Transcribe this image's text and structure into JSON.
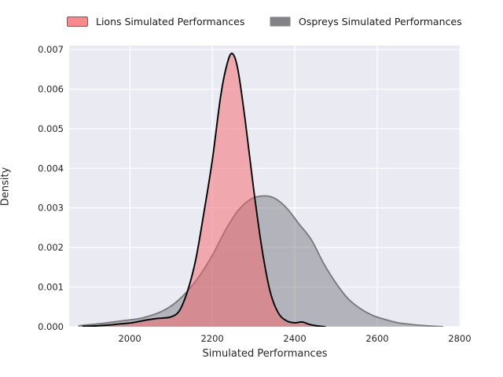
{
  "figure": {
    "background": "#ffffff",
    "plot_background": "#eaeaf2",
    "grid_color": "#ffffff",
    "text_color": "#262626"
  },
  "legend": {
    "items": [
      {
        "label": "Lions Simulated Performances",
        "swatch_fill": "#f8898c",
        "swatch_edge": "#a04a4e"
      },
      {
        "label": "Ospreys Simulated Performances",
        "swatch_fill": "#838387",
        "swatch_edge": "#bcbcc0"
      }
    ]
  },
  "chart_data": {
    "type": "area",
    "title": "",
    "xlabel": "Simulated Performances",
    "ylabel": "Density",
    "xlim": [
      1853,
      2802
    ],
    "ylim": [
      0,
      0.0071
    ],
    "xticks": [
      2000,
      2200,
      2400,
      2600,
      2800
    ],
    "yticks": [
      0,
      0.001,
      0.002,
      0.003,
      0.004,
      0.005,
      0.006,
      0.007
    ],
    "ytick_labels": [
      "0.000",
      "0.001",
      "0.002",
      "0.003",
      "0.004",
      "0.005",
      "0.006",
      "0.007"
    ],
    "grid": true,
    "legend_position": "above plot, horizontal, two entries",
    "series": [
      {
        "name": "Ospreys Simulated Performances",
        "line_color": "#7b7b7b",
        "fill_color": "rgba(110,110,116,0.44)",
        "x": [
          1875,
          1900,
          1930,
          1960,
          1990,
          2020,
          2050,
          2080,
          2110,
          2140,
          2170,
          2200,
          2230,
          2260,
          2290,
          2320,
          2350,
          2380,
          2410,
          2440,
          2470,
          2500,
          2530,
          2560,
          2590,
          2620,
          2650,
          2680,
          2710,
          2740,
          2760
        ],
        "y": [
          2e-05,
          5e-05,
          8e-05,
          0.00012,
          0.00016,
          0.0002,
          0.00028,
          0.0004,
          0.0006,
          0.0009,
          0.0013,
          0.0018,
          0.0024,
          0.0029,
          0.0032,
          0.0033,
          0.00325,
          0.003,
          0.0026,
          0.0022,
          0.0016,
          0.0011,
          0.0007,
          0.00045,
          0.00028,
          0.00018,
          0.0001,
          6e-05,
          3e-05,
          1e-05,
          0
        ]
      },
      {
        "name": "Lions Simulated Performances",
        "line_color": "#000000",
        "fill_color": "rgba(245,100,105,0.5)",
        "x": [
          1885,
          1915,
          1945,
          1975,
          2005,
          2035,
          2060,
          2080,
          2100,
          2120,
          2140,
          2160,
          2180,
          2200,
          2220,
          2235,
          2248,
          2262,
          2280,
          2300,
          2320,
          2340,
          2360,
          2380,
          2400,
          2418,
          2435,
          2455,
          2475
        ],
        "y": [
          1e-05,
          2e-05,
          4e-05,
          7e-05,
          0.0001,
          0.00016,
          0.0002,
          0.00022,
          0.00025,
          0.0004,
          0.0009,
          0.0017,
          0.0029,
          0.0042,
          0.0058,
          0.0066,
          0.0069,
          0.0065,
          0.0052,
          0.0035,
          0.002,
          0.0009,
          0.00035,
          0.00015,
          0.0001,
          0.00012,
          6e-05,
          2e-05,
          0
        ]
      }
    ]
  }
}
